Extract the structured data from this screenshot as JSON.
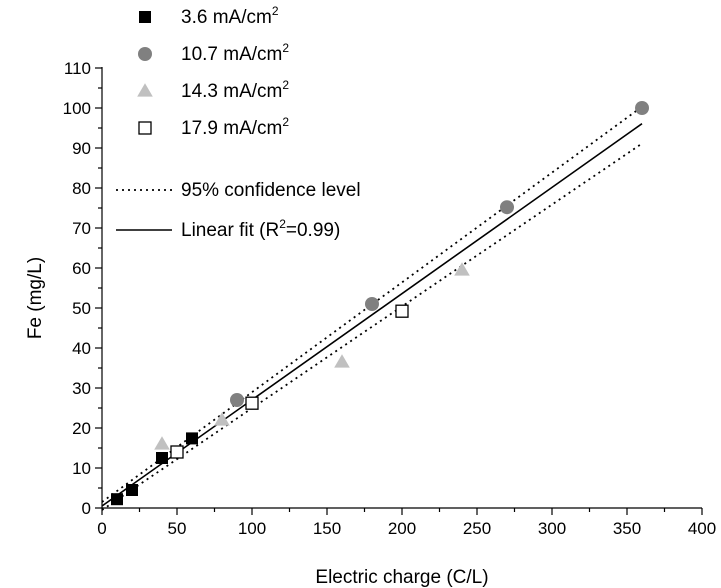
{
  "chart_data": {
    "type": "scatter",
    "xlabel": "Electric charge (C/L)",
    "ylabel": "Fe (mg/L)",
    "xlim": [
      0,
      400
    ],
    "ylim": [
      0,
      110
    ],
    "x_ticks": [
      0,
      50,
      100,
      150,
      200,
      250,
      300,
      350,
      400
    ],
    "y_ticks": [
      0,
      10,
      20,
      30,
      40,
      50,
      60,
      70,
      80,
      90,
      100,
      110
    ],
    "grid": false,
    "legend_position": "top-left",
    "series": [
      {
        "name": "3.6 mA/cm",
        "name_superscript": "2",
        "marker": "filled-square",
        "color": "#000000",
        "x": [
          10,
          20,
          40,
          60
        ],
        "y": [
          2.2,
          4.5,
          12.5,
          17.4
        ]
      },
      {
        "name": "10.7 mA/cm",
        "name_superscript": "2",
        "marker": "filled-circle",
        "color": "#808080",
        "x": [
          90,
          180,
          270,
          360
        ],
        "y": [
          27,
          51,
          75.2,
          100
        ]
      },
      {
        "name": "14.3 mA/cm",
        "name_superscript": "2",
        "marker": "filled-triangle",
        "color": "#c0c0c0",
        "x": [
          40,
          80,
          160,
          240
        ],
        "y": [
          16,
          22,
          36.5,
          59.5
        ]
      },
      {
        "name": "17.9 mA/cm",
        "name_superscript": "2",
        "marker": "open-square",
        "color": "#000000",
        "x": [
          50,
          100,
          200
        ],
        "y": [
          14,
          26.2,
          49.2
        ]
      }
    ],
    "fit": {
      "name": "Linear fit",
      "name_pre": "Linear fit (R",
      "name_superscript": "2",
      "name_post": "=0.99)",
      "slope": 0.2655,
      "intercept": 0.5,
      "x_range": [
        0,
        360
      ]
    },
    "confidence": {
      "name": "95% confidence level",
      "upper": {
        "slope": 0.2745,
        "intercept": 1.5
      },
      "lower": {
        "slope": 0.2545,
        "intercept": -0.5
      },
      "x_range": [
        0,
        360
      ]
    }
  }
}
